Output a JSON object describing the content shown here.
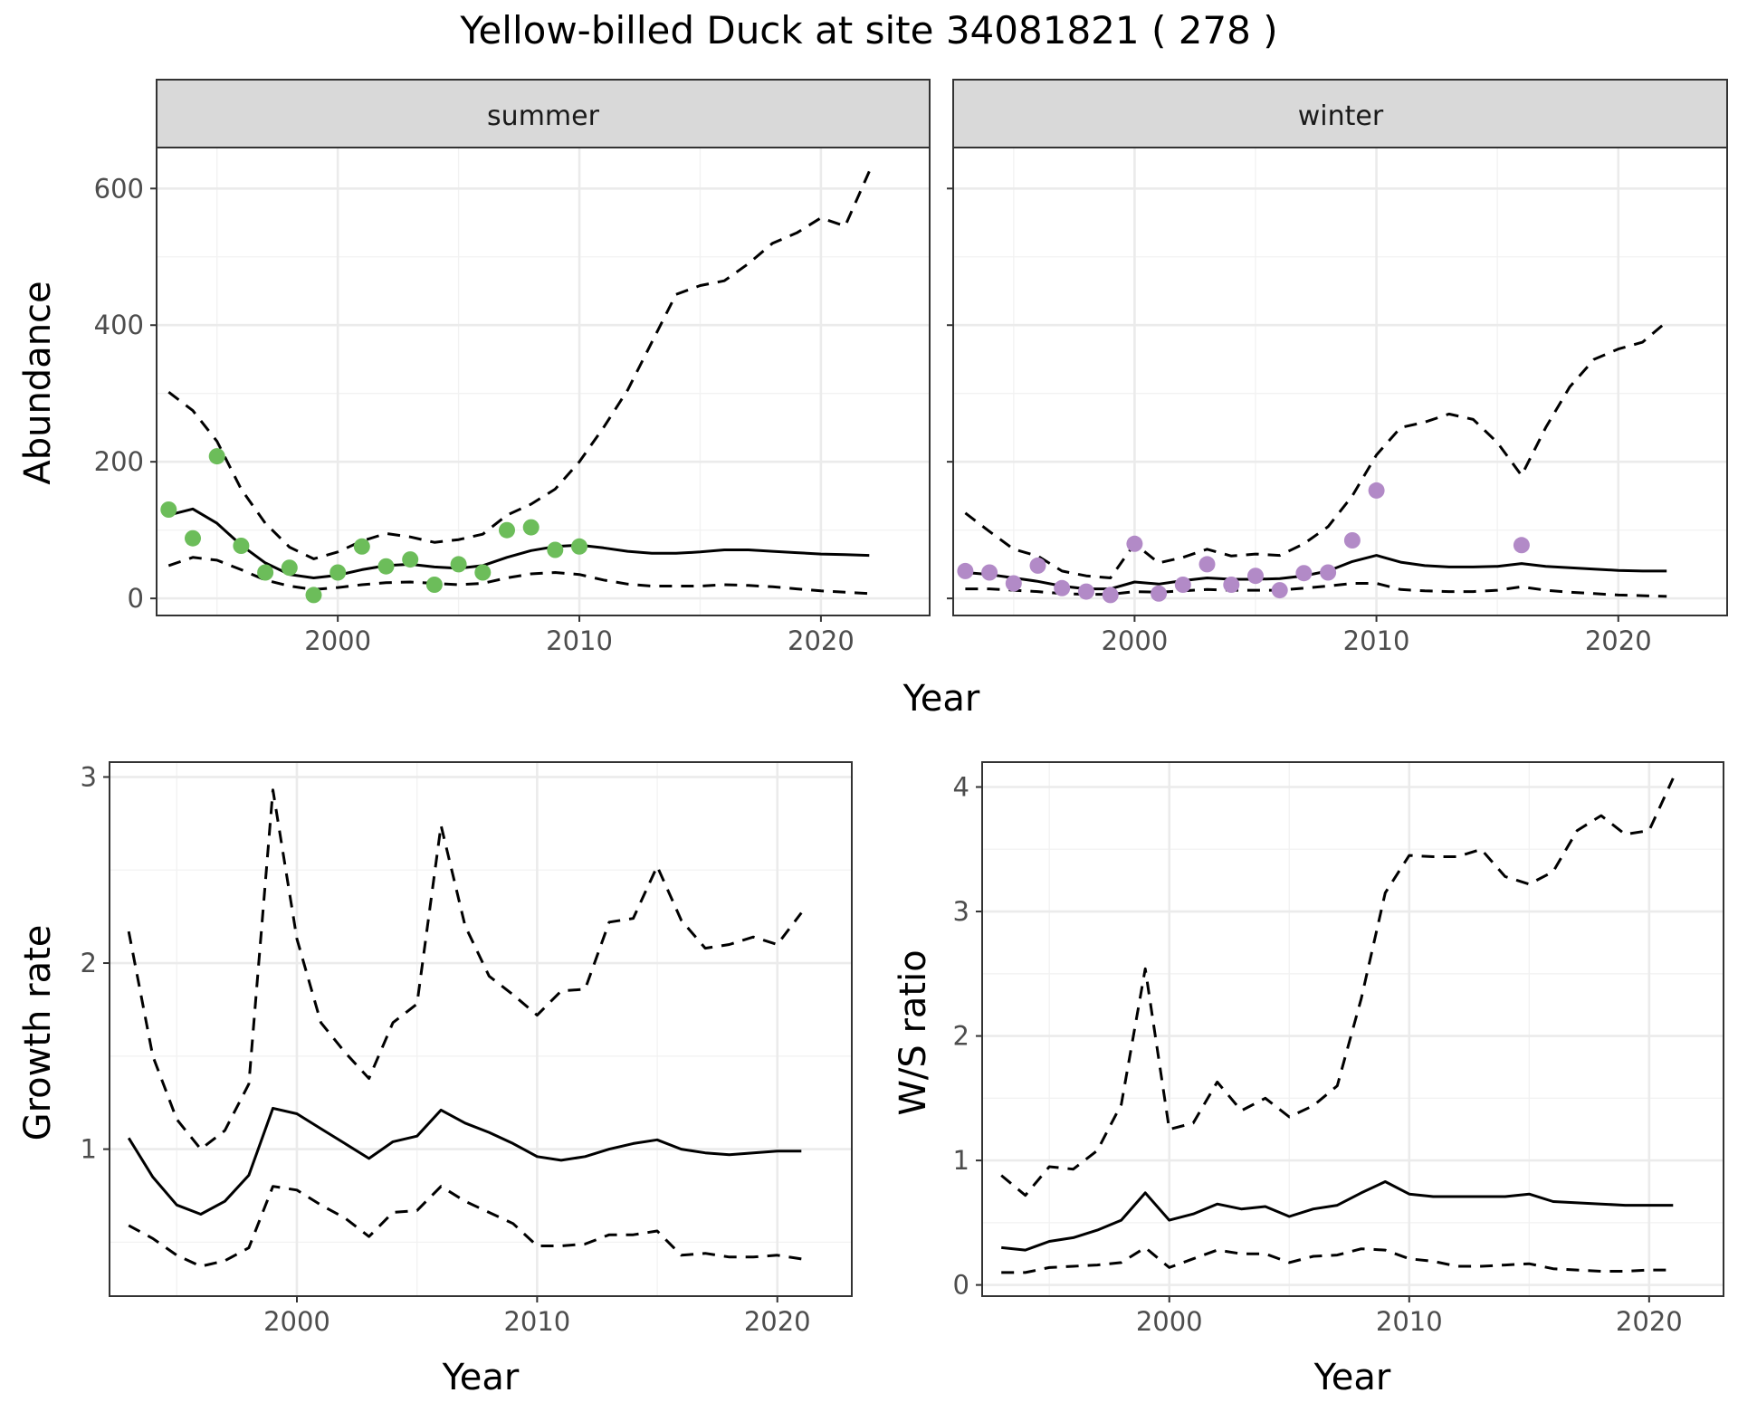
{
  "title": "Yellow-billed Duck at site 34081821 ( 278 )",
  "colors": {
    "summer_points": "#6cbd5a",
    "winter_points": "#b28ac7",
    "lines": "#000000"
  },
  "chart_data": [
    {
      "type": "line",
      "facet": "summer",
      "xlabel": "Year",
      "ylabel": "Abundance",
      "xlim": [
        1992.5,
        2024.5
      ],
      "ylim": [
        -25,
        660
      ],
      "x_ticks": [
        2000,
        2010,
        2020
      ],
      "y_ticks": [
        0,
        200,
        400,
        600
      ],
      "grid": true,
      "point_color": "#6cbd5a",
      "points": {
        "x": [
          1993,
          1994,
          1995,
          1996,
          1997,
          1998,
          1999,
          2000,
          2001,
          2002,
          2003,
          2004,
          2005,
          2006,
          2007,
          2008,
          2009,
          2010
        ],
        "y": [
          130,
          88,
          208,
          77,
          38,
          45,
          5,
          38,
          76,
          47,
          57,
          20,
          50,
          38,
          100,
          104,
          71,
          76
        ]
      },
      "series": [
        {
          "style": "solid",
          "x": [
            1993,
            1994,
            1995,
            1996,
            1997,
            1998,
            1999,
            2000,
            2001,
            2002,
            2003,
            2004,
            2005,
            2006,
            2007,
            2008,
            2009,
            2010,
            2011,
            2012,
            2013,
            2014,
            2015,
            2016,
            2017,
            2018,
            2019,
            2020,
            2021,
            2022
          ],
          "y": [
            122,
            131,
            110,
            78,
            52,
            35,
            30,
            34,
            42,
            48,
            50,
            46,
            44,
            48,
            60,
            70,
            76,
            78,
            74,
            69,
            66,
            66,
            68,
            71,
            71,
            69,
            67,
            65,
            64,
            63
          ]
        },
        {
          "style": "dashed",
          "x": [
            1993,
            1994,
            1995,
            1996,
            1997,
            1998,
            1999,
            2000,
            2001,
            2002,
            2003,
            2004,
            2005,
            2006,
            2007,
            2008,
            2009,
            2010,
            2011,
            2012,
            2013,
            2014,
            2015,
            2016,
            2017,
            2018,
            2019,
            2020,
            2021,
            2022
          ],
          "y": [
            302,
            275,
            230,
            160,
            110,
            75,
            58,
            68,
            84,
            95,
            90,
            82,
            86,
            94,
            122,
            138,
            160,
            200,
            250,
            305,
            375,
            445,
            458,
            465,
            490,
            520,
            535,
            557,
            545,
            625
          ]
        },
        {
          "style": "dashed",
          "x": [
            1993,
            1994,
            1995,
            1996,
            1997,
            1998,
            1999,
            2000,
            2001,
            2002,
            2003,
            2004,
            2005,
            2006,
            2007,
            2008,
            2009,
            2010,
            2011,
            2012,
            2013,
            2014,
            2015,
            2016,
            2017,
            2018,
            2019,
            2020,
            2021,
            2022
          ],
          "y": [
            48,
            60,
            56,
            42,
            27,
            18,
            13,
            16,
            20,
            23,
            24,
            22,
            20,
            22,
            30,
            36,
            38,
            35,
            27,
            21,
            18,
            18,
            18,
            20,
            19,
            17,
            14,
            11,
            9,
            7
          ]
        }
      ]
    },
    {
      "type": "line",
      "facet": "winter",
      "xlabel": "Year",
      "ylabel": "Abundance",
      "xlim": [
        1992.5,
        2024.5
      ],
      "ylim": [
        -25,
        660
      ],
      "x_ticks": [
        2000,
        2010,
        2020
      ],
      "y_ticks": [
        0,
        200,
        400,
        600
      ],
      "grid": true,
      "point_color": "#b28ac7",
      "points": {
        "x": [
          1993,
          1994,
          1995,
          1996,
          1997,
          1998,
          1999,
          2000,
          2001,
          2002,
          2003,
          2004,
          2005,
          2006,
          2007,
          2008,
          2009,
          2010,
          2016
        ],
        "y": [
          40,
          38,
          22,
          48,
          15,
          10,
          5,
          80,
          7,
          20,
          50,
          20,
          33,
          12,
          37,
          38,
          85,
          158,
          78
        ]
      },
      "series": [
        {
          "style": "solid",
          "x": [
            1993,
            1994,
            1995,
            1996,
            1997,
            1998,
            1999,
            2000,
            2001,
            2002,
            2003,
            2004,
            2005,
            2006,
            2007,
            2008,
            2009,
            2010,
            2011,
            2012,
            2013,
            2014,
            2015,
            2016,
            2017,
            2018,
            2019,
            2020,
            2021,
            2022
          ],
          "y": [
            38,
            35,
            30,
            25,
            18,
            14,
            14,
            24,
            21,
            26,
            30,
            28,
            28,
            29,
            33,
            40,
            54,
            63,
            53,
            48,
            46,
            46,
            47,
            51,
            47,
            45,
            43,
            41,
            40,
            40
          ]
        },
        {
          "style": "dashed",
          "x": [
            1993,
            1994,
            1995,
            1996,
            1997,
            1998,
            1999,
            2000,
            2001,
            2002,
            2003,
            2004,
            2005,
            2006,
            2007,
            2008,
            2009,
            2010,
            2011,
            2012,
            2013,
            2014,
            2015,
            2016,
            2017,
            2018,
            2019,
            2020,
            2021,
            2022
          ],
          "y": [
            125,
            98,
            72,
            62,
            40,
            33,
            30,
            80,
            52,
            60,
            72,
            62,
            65,
            63,
            80,
            105,
            150,
            210,
            250,
            258,
            270,
            262,
            228,
            180,
            250,
            310,
            350,
            365,
            375,
            405
          ]
        },
        {
          "style": "dashed",
          "x": [
            1993,
            1994,
            1995,
            1996,
            1997,
            1998,
            1999,
            2000,
            2001,
            2002,
            2003,
            2004,
            2005,
            2006,
            2007,
            2008,
            2009,
            2010,
            2011,
            2012,
            2013,
            2014,
            2015,
            2016,
            2017,
            2018,
            2019,
            2020,
            2021,
            2022
          ],
          "y": [
            14,
            14,
            12,
            10,
            7,
            6,
            6,
            10,
            9,
            11,
            13,
            12,
            12,
            12,
            15,
            18,
            22,
            22,
            13,
            11,
            10,
            10,
            12,
            17,
            12,
            9,
            7,
            5,
            4,
            3
          ]
        }
      ]
    },
    {
      "type": "line",
      "xlabel": "Year",
      "ylabel": "Growth rate",
      "xlim": [
        1992.2,
        2023.1
      ],
      "ylim": [
        0.21,
        3.08
      ],
      "x_ticks": [
        2000,
        2010,
        2020
      ],
      "y_ticks": [
        1,
        2,
        3
      ],
      "grid": true,
      "series": [
        {
          "style": "solid",
          "x": [
            1993,
            1994,
            1995,
            1996,
            1997,
            1998,
            1999,
            2000,
            2001,
            2002,
            2003,
            2004,
            2005,
            2006,
            2007,
            2008,
            2009,
            2010,
            2011,
            2012,
            2013,
            2014,
            2015,
            2016,
            2017,
            2018,
            2019,
            2020,
            2021
          ],
          "y": [
            1.06,
            0.85,
            0.7,
            0.65,
            0.72,
            0.86,
            1.22,
            1.19,
            1.11,
            1.03,
            0.95,
            1.04,
            1.07,
            1.21,
            1.14,
            1.09,
            1.03,
            0.96,
            0.94,
            0.96,
            1.0,
            1.03,
            1.05,
            1.0,
            0.98,
            0.97,
            0.98,
            0.99,
            0.99
          ]
        },
        {
          "style": "dashed",
          "x": [
            1993,
            1994,
            1995,
            1996,
            1997,
            1998,
            1999,
            2000,
            2001,
            2002,
            2003,
            2004,
            2005,
            2006,
            2007,
            2008,
            2009,
            2010,
            2011,
            2012,
            2013,
            2014,
            2015,
            2016,
            2017,
            2018,
            2019,
            2020,
            2021
          ],
          "y": [
            2.17,
            1.5,
            1.16,
            1.0,
            1.1,
            1.35,
            2.93,
            2.13,
            1.68,
            1.52,
            1.38,
            1.68,
            1.78,
            2.74,
            2.2,
            1.93,
            1.83,
            1.72,
            1.85,
            1.86,
            2.22,
            2.24,
            2.52,
            2.23,
            2.08,
            2.1,
            2.14,
            2.1,
            2.27
          ]
        },
        {
          "style": "dashed",
          "x": [
            1993,
            1994,
            1995,
            1996,
            1997,
            1998,
            1999,
            2000,
            2001,
            2002,
            2003,
            2004,
            2005,
            2006,
            2007,
            2008,
            2009,
            2010,
            2011,
            2012,
            2013,
            2014,
            2015,
            2016,
            2017,
            2018,
            2019,
            2020,
            2021
          ],
          "y": [
            0.59,
            0.52,
            0.43,
            0.37,
            0.4,
            0.47,
            0.8,
            0.78,
            0.7,
            0.63,
            0.53,
            0.66,
            0.67,
            0.8,
            0.72,
            0.66,
            0.6,
            0.48,
            0.48,
            0.49,
            0.54,
            0.54,
            0.56,
            0.43,
            0.44,
            0.42,
            0.42,
            0.43,
            0.41
          ]
        }
      ]
    },
    {
      "type": "line",
      "xlabel": "Year",
      "ylabel": "W/S ratio",
      "xlim": [
        1992.2,
        2023.1
      ],
      "ylim": [
        -0.09,
        4.2
      ],
      "x_ticks": [
        2000,
        2010,
        2020
      ],
      "y_ticks": [
        0,
        1,
        2,
        3,
        4
      ],
      "grid": true,
      "series": [
        {
          "style": "solid",
          "x": [
            1993,
            1994,
            1995,
            1996,
            1997,
            1998,
            1999,
            2000,
            2001,
            2002,
            2003,
            2004,
            2005,
            2006,
            2007,
            2008,
            2009,
            2010,
            2011,
            2012,
            2013,
            2014,
            2015,
            2016,
            2017,
            2018,
            2019,
            2020,
            2021
          ],
          "y": [
            0.3,
            0.28,
            0.35,
            0.38,
            0.44,
            0.52,
            0.74,
            0.52,
            0.57,
            0.65,
            0.61,
            0.63,
            0.55,
            0.61,
            0.64,
            0.74,
            0.83,
            0.73,
            0.71,
            0.71,
            0.71,
            0.71,
            0.73,
            0.67,
            0.66,
            0.65,
            0.64,
            0.64,
            0.64
          ]
        },
        {
          "style": "dashed",
          "x": [
            1993,
            1994,
            1995,
            1996,
            1997,
            1998,
            1999,
            2000,
            2001,
            2002,
            2003,
            2004,
            2005,
            2006,
            2007,
            2008,
            2009,
            2010,
            2011,
            2012,
            2013,
            2014,
            2015,
            2016,
            2017,
            2018,
            2019,
            2020,
            2021
          ],
          "y": [
            0.88,
            0.72,
            0.95,
            0.93,
            1.08,
            1.45,
            2.54,
            1.25,
            1.3,
            1.63,
            1.4,
            1.5,
            1.35,
            1.44,
            1.6,
            2.3,
            3.15,
            3.45,
            3.44,
            3.44,
            3.5,
            3.28,
            3.22,
            3.32,
            3.65,
            3.77,
            3.62,
            3.65,
            4.07
          ]
        },
        {
          "style": "dashed",
          "x": [
            1993,
            1994,
            1995,
            1996,
            1997,
            1998,
            1999,
            2000,
            2001,
            2002,
            2003,
            2004,
            2005,
            2006,
            2007,
            2008,
            2009,
            2010,
            2011,
            2012,
            2013,
            2014,
            2015,
            2016,
            2017,
            2018,
            2019,
            2020,
            2021
          ],
          "y": [
            0.1,
            0.1,
            0.14,
            0.15,
            0.16,
            0.18,
            0.3,
            0.14,
            0.21,
            0.28,
            0.25,
            0.25,
            0.18,
            0.23,
            0.24,
            0.29,
            0.28,
            0.21,
            0.19,
            0.15,
            0.15,
            0.16,
            0.17,
            0.13,
            0.12,
            0.11,
            0.11,
            0.12,
            0.12
          ]
        }
      ]
    }
  ]
}
